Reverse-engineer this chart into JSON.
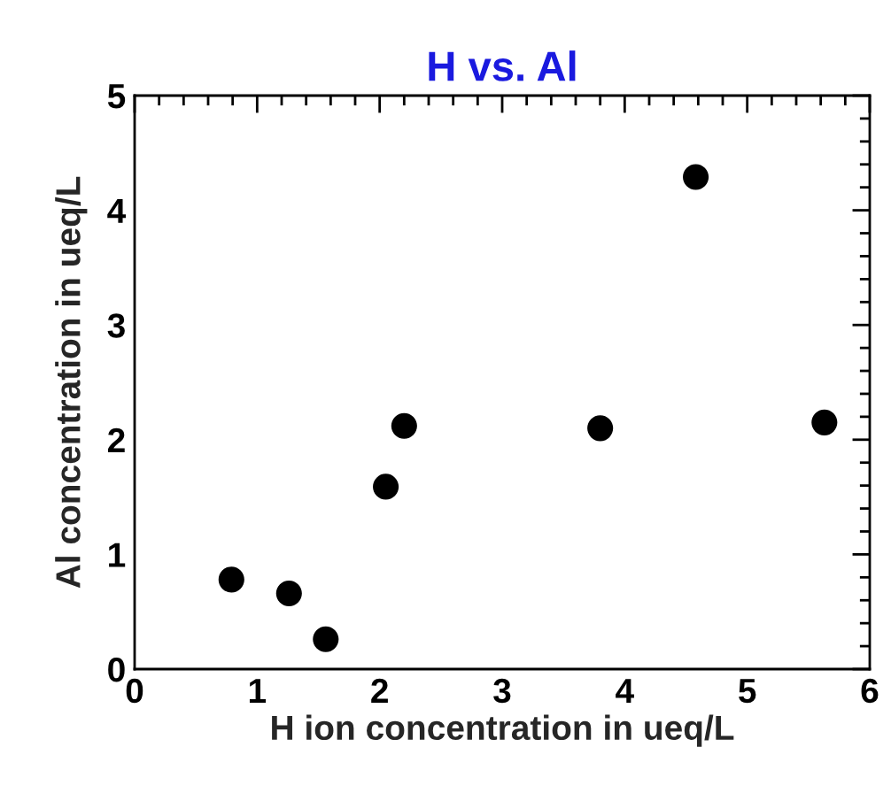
{
  "chart_data": {
    "type": "scatter",
    "title": "H vs. Al",
    "xlabel": "H ion concentration in ueq/L",
    "ylabel": "Al concentration in ueq/L",
    "x": [
      0.79,
      1.26,
      1.56,
      2.05,
      2.2,
      3.8,
      4.58,
      5.63
    ],
    "series": [
      {
        "color": "#000000",
        "values": [
          0.78,
          0.66,
          0.26,
          1.59,
          2.12,
          2.1,
          4.29,
          2.15
        ]
      }
    ],
    "marker": "circle",
    "xlim": [
      0,
      6
    ],
    "ylim": [
      0,
      5
    ],
    "xticks": [
      0,
      1,
      2,
      3,
      4,
      5,
      6
    ],
    "yticks": [
      0,
      1,
      2,
      3,
      4,
      5
    ],
    "grid": false,
    "legend": false
  }
}
